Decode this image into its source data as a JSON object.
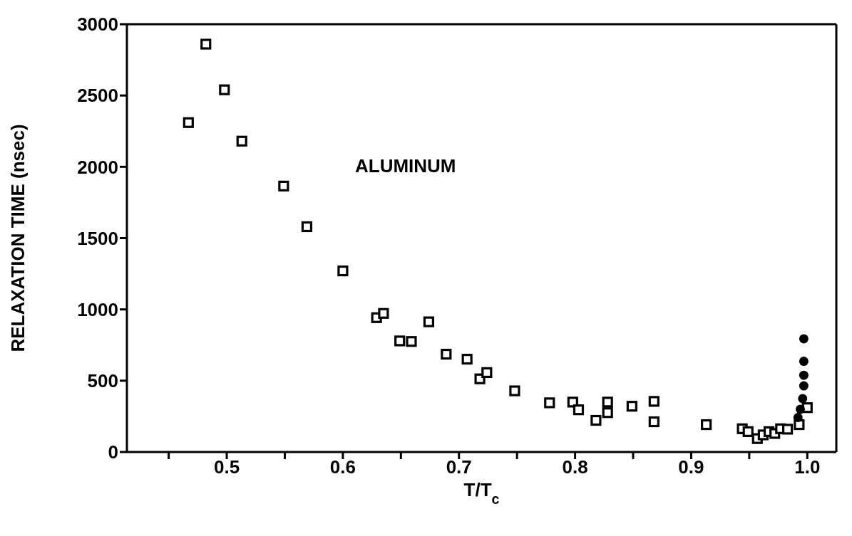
{
  "chart_data": {
    "type": "scatter",
    "xlabel": "T/T$_{c}$",
    "ylabel": "RELAXATION TIME (nsec)",
    "annotations": [
      "ALUMINUM"
    ],
    "xlim": [
      0.414,
      1.025
    ],
    "ylim": [
      0,
      3000
    ],
    "xticks": [
      {
        "value": 0.45,
        "label": null
      },
      0.5,
      {
        "value": 0.55,
        "label": null
      },
      0.6,
      {
        "value": 0.65,
        "label": null
      },
      0.7,
      {
        "value": 0.75,
        "label": null
      },
      0.8,
      {
        "value": 0.85,
        "label": null
      },
      0.9,
      {
        "value": 0.95,
        "label": null
      },
      {
        "value": 1.0,
        "label": "1.0"
      }
    ],
    "yticks": [
      0,
      500,
      1000,
      1500,
      2000,
      2500,
      3000
    ],
    "series": [
      {
        "color": "#000000",
        "marker": "square",
        "x": [
          0.467,
          0.482,
          0.498,
          0.513,
          0.549,
          0.569,
          0.6,
          0.629,
          0.635,
          0.649,
          0.659,
          0.674,
          0.689,
          0.707,
          0.718,
          0.724,
          0.748,
          0.778,
          0.798,
          0.803,
          0.818,
          0.828,
          0.828,
          0.849,
          0.868,
          0.868,
          0.913,
          0.944,
          0.949,
          0.957,
          0.962,
          0.967,
          0.972,
          0.977,
          0.983,
          0.988,
          0.991,
          0.993,
          1.0
        ],
        "values": [
          2310,
          2860,
          2540,
          2180,
          1865,
          1580,
          1270,
          942,
          972,
          779,
          775,
          913,
          686,
          651,
          513,
          557,
          429,
          345,
          350,
          296,
          222,
          350,
          276,
          321,
          355,
          212,
          192,
          163,
          143,
          94,
          120,
          143,
          130,
          163,
          160,
          null,
          null,
          192,
          311
        ]
      },
      {
        "color": "#000000",
        "marker": "circle",
        "x": [
          0.992,
          0.994,
          0.996,
          0.997,
          0.997,
          0.997,
          0.997
        ],
        "values": [
          242,
          300,
          375,
          464,
          538,
          636,
          794
        ]
      }
    ]
  }
}
